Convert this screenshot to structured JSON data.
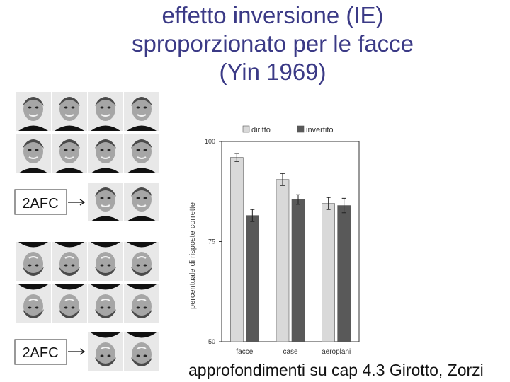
{
  "slide": {
    "title_lines": [
      "effetto inversione (IE)",
      "sproporzionato per le facce",
      "(Yin 1969)"
    ],
    "footer": "approfondimenti su cap 4.3 Girotto, Zorzi"
  },
  "stimuli": {
    "afc_label_1": "2AFC",
    "afc_label_2": "2AFC"
  },
  "colors": {
    "title": "#3b3a86",
    "upright_bar": "#d9d9d9",
    "inverted_bar": "#595959"
  },
  "chart_data": {
    "type": "bar",
    "categories": [
      "facce",
      "case",
      "aeroplani"
    ],
    "series": [
      {
        "name": "diritto",
        "values": [
          96,
          90.5,
          84.5
        ],
        "errors": [
          1,
          1.5,
          1.5
        ]
      },
      {
        "name": "invertito",
        "values": [
          81.5,
          85.5,
          84
        ],
        "errors": [
          1.5,
          1.2,
          1.8
        ]
      }
    ],
    "ylabel": "percentuale di risposte corrette",
    "xlabel": "",
    "ylim": [
      50,
      100
    ],
    "yticks": [
      100,
      75,
      50
    ],
    "legend": "top"
  }
}
